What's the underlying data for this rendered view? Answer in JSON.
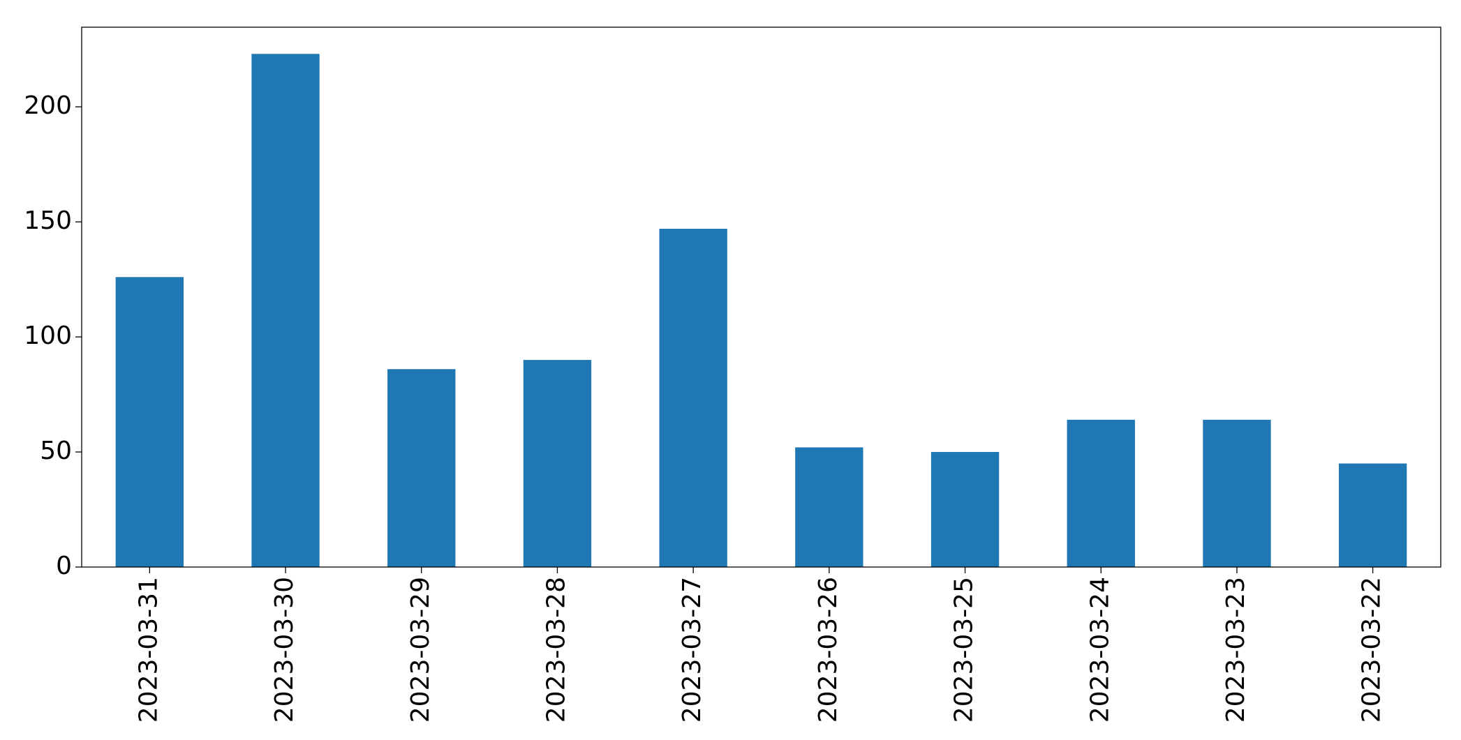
{
  "chart_data": {
    "type": "bar",
    "categories": [
      "2023-03-31",
      "2023-03-30",
      "2023-03-29",
      "2023-03-28",
      "2023-03-27",
      "2023-03-26",
      "2023-03-25",
      "2023-03-24",
      "2023-03-23",
      "2023-03-22"
    ],
    "values": [
      126,
      223,
      86,
      90,
      147,
      52,
      50,
      64,
      64,
      45
    ],
    "color": "#1f77b4",
    "ylim": [
      0,
      234.6
    ],
    "yticks": [
      0,
      50,
      100,
      150,
      200
    ],
    "grid": false
  }
}
